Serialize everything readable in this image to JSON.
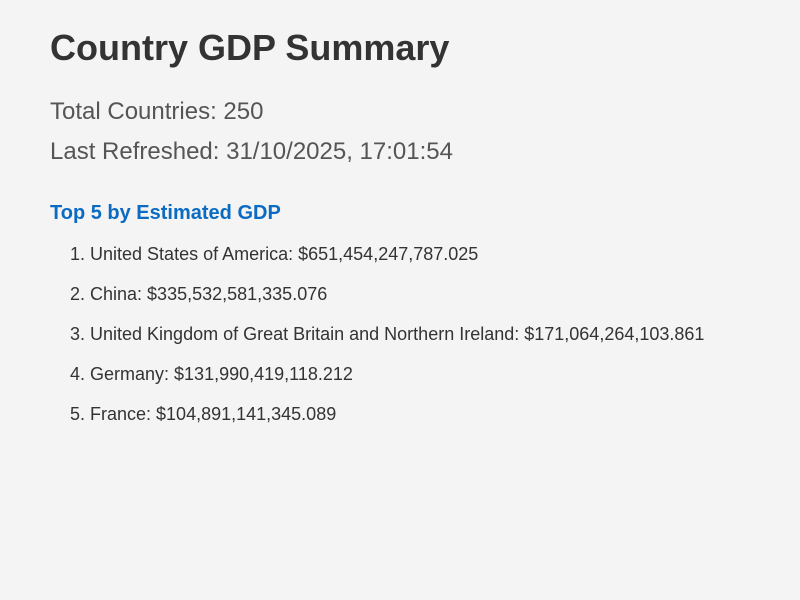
{
  "page": {
    "title": "Country GDP Summary"
  },
  "stats": {
    "total_countries": "Total Countries: 250",
    "last_refreshed": "Last Refreshed: 31/10/2025, 17:01:54"
  },
  "top_list": {
    "heading": "Top 5 by Estimated GDP",
    "items": [
      "1. United States of America: $651,454,247,787.025",
      "2. China: $335,532,581,335.076",
      "3. United Kingdom of Great Britain and Northern Ireland: $171,064,264,103.861",
      "4. Germany: $131,990,419,118.212",
      "5. France: $104,891,141,345.089"
    ]
  },
  "colors": {
    "background": "#f4f4f4",
    "title": "#333333",
    "stat_text": "#555555",
    "heading_accent": "#0b6bc2"
  }
}
